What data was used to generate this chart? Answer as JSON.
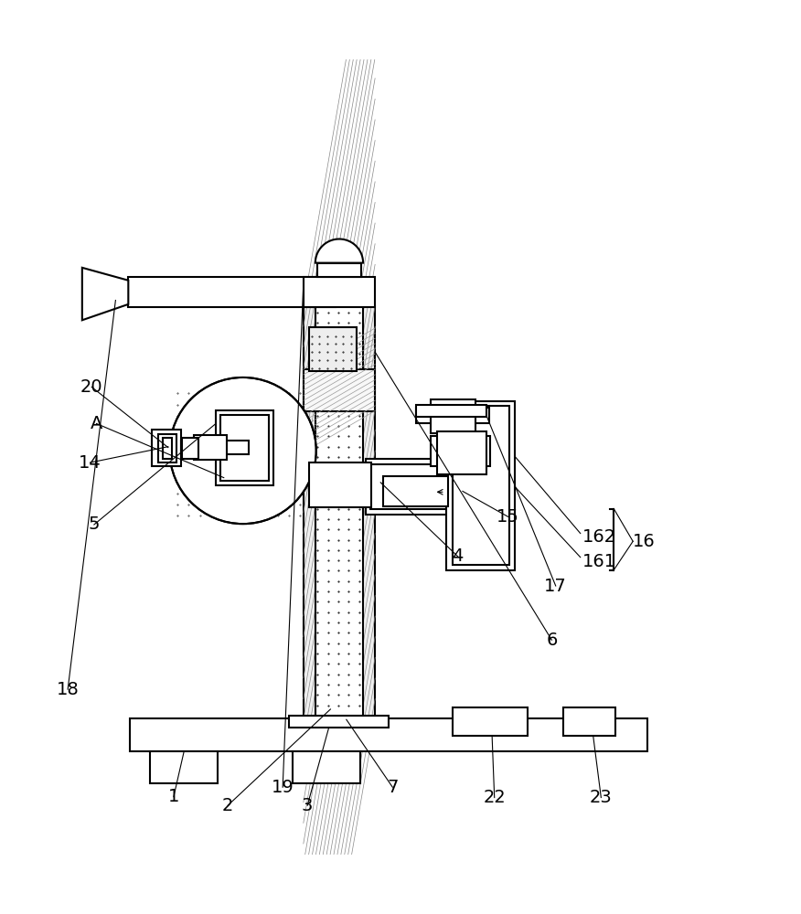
{
  "bg_color": "#ffffff",
  "lc": "#000000",
  "lw": 1.5,
  "tlw": 0.8,
  "label_fs": 14,
  "fig_w": 8.76,
  "fig_h": 10.0
}
